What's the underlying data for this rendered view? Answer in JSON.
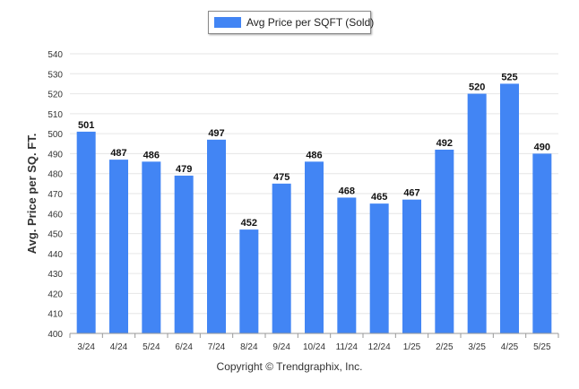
{
  "chart_data": {
    "type": "bar",
    "categories": [
      "3/24",
      "4/24",
      "5/24",
      "6/24",
      "7/24",
      "8/24",
      "9/24",
      "10/24",
      "11/24",
      "12/24",
      "1/25",
      "2/25",
      "3/25",
      "4/25",
      "5/25"
    ],
    "series": [
      {
        "name": "Avg Price per SQFT (Sold)",
        "values": [
          501,
          487,
          486,
          479,
          497,
          452,
          475,
          486,
          468,
          465,
          467,
          492,
          520,
          525,
          490
        ]
      }
    ],
    "title": "",
    "xlabel": "",
    "ylabel": "Avg. Price per SQ. FT.",
    "ylim": [
      400,
      540
    ],
    "yticks": [
      400,
      410,
      420,
      430,
      440,
      450,
      460,
      470,
      480,
      490,
      500,
      510,
      520,
      530,
      540
    ],
    "grid": true,
    "legend": "top-center",
    "data_labels": true,
    "colors": {
      "bar": "#4285f4",
      "grid": "#e6e6e6",
      "axis": "#999999"
    }
  },
  "footer": {
    "copyright": "Copyright © Trendgraphix, Inc."
  }
}
